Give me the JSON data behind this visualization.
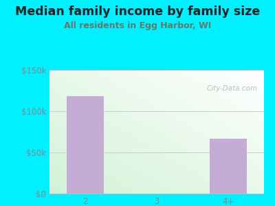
{
  "title": "Median family income by family size",
  "subtitle": "All residents in Egg Harbor, WI",
  "categories": [
    "2",
    "3",
    "4+"
  ],
  "values": [
    118000,
    0,
    67000
  ],
  "bar_color": "#c4acd4",
  "ylim": [
    0,
    150000
  ],
  "yticks": [
    0,
    50000,
    100000,
    150000
  ],
  "ytick_labels": [
    "$0",
    "$50k",
    "$100k",
    "$150k"
  ],
  "bg_color": "#00f0ff",
  "title_color": "#222222",
  "subtitle_color": "#667766",
  "tick_color": "#888888",
  "watermark_text": "City-Data.com",
  "title_fontsize": 12.5,
  "subtitle_fontsize": 9,
  "tick_fontsize": 8.5,
  "grid_color": "#cccccc",
  "plot_grad_topleft": [
    0.92,
    0.98,
    0.92
  ],
  "plot_grad_botleft": [
    0.82,
    0.95,
    0.84
  ],
  "plot_grad_topright": [
    1.0,
    1.0,
    1.0
  ],
  "plot_grad_botright": [
    0.95,
    1.0,
    0.95
  ]
}
